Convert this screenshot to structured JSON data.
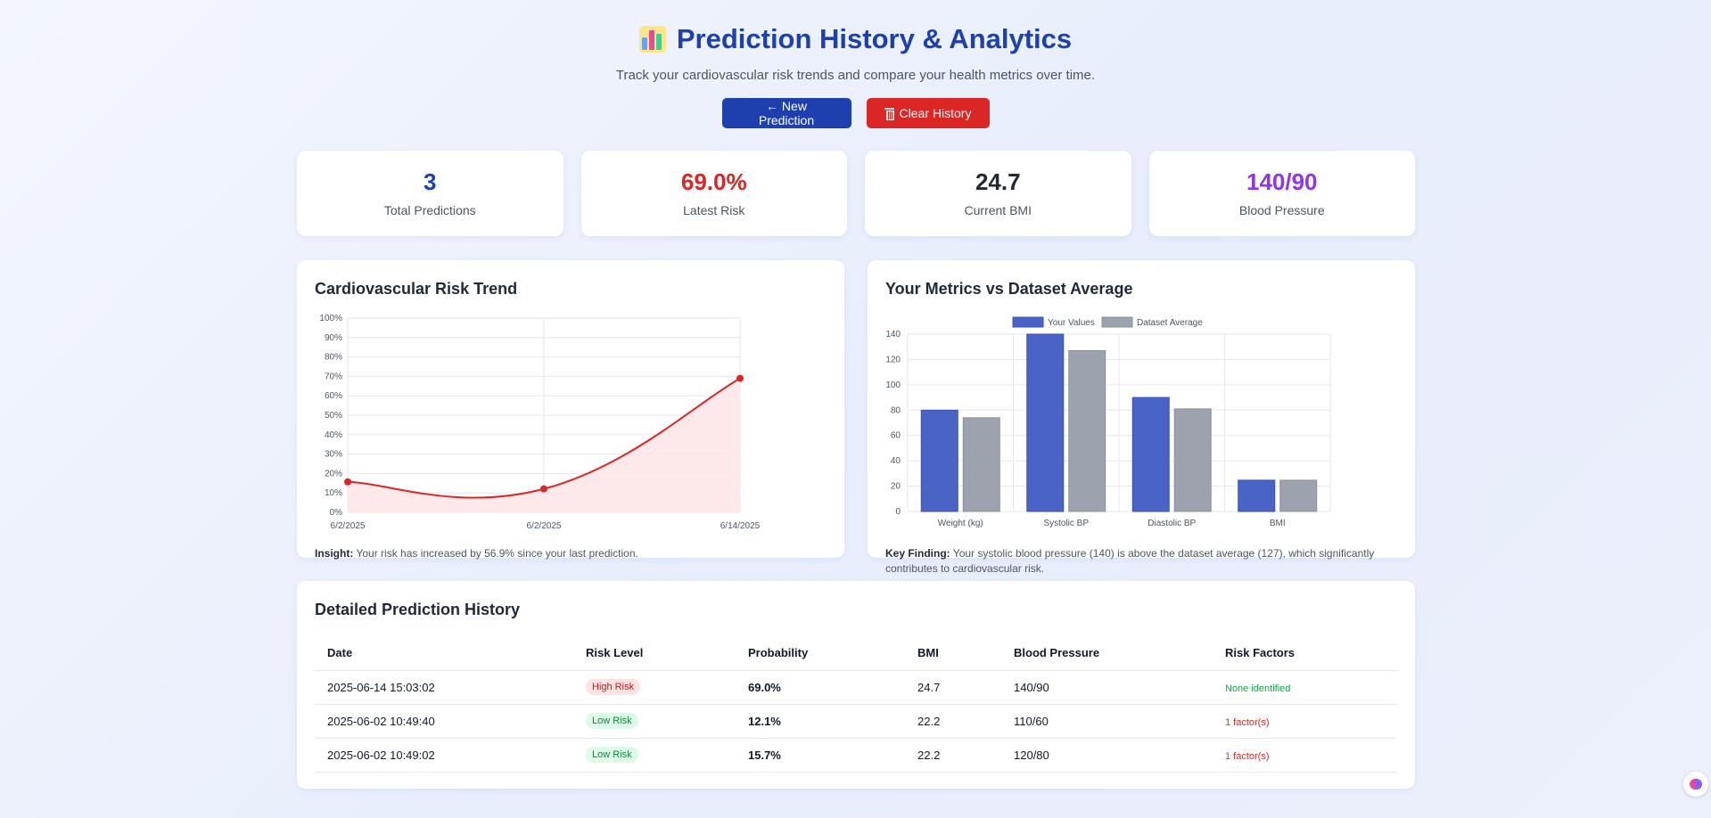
{
  "header": {
    "title": "Prediction History & Analytics",
    "subtitle": "Track your cardiovascular risk trends and compare your health metrics over time.",
    "new_prediction_label": "← New Prediction",
    "clear_history_label": "Clear History"
  },
  "stats": [
    {
      "value": "3",
      "label": "Total Predictions",
      "color": "#1e40af"
    },
    {
      "value": "69.0%",
      "label": "Latest Risk",
      "color": "#dc2626"
    },
    {
      "value": "24.7",
      "label": "Current BMI",
      "color": "#1f2937"
    },
    {
      "value": "140/90",
      "label": "Blood Pressure",
      "color": "#9333ea"
    }
  ],
  "risk_chart": {
    "title": "Cardiovascular Risk Trend",
    "insight_label": "Insight:",
    "insight_text": " Your risk has increased by 56.9% since your last prediction."
  },
  "metrics_chart": {
    "title": "Your Metrics vs Dataset Average",
    "finding_label": "Key Finding:",
    "finding_text": " Your systolic blood pressure (140) is above the dataset average (127), which significantly contributes to cardiovascular risk."
  },
  "chart_data": [
    {
      "type": "line",
      "title": "Cardiovascular Risk Trend",
      "x": [
        "6/2/2025",
        "6/2/2025",
        "6/14/2025"
      ],
      "series": [
        {
          "name": "Risk",
          "values": [
            15.7,
            12.1,
            69.0
          ]
        }
      ],
      "ylim": [
        0,
        100
      ],
      "yticks": [
        "0%",
        "10%",
        "20%",
        "30%",
        "40%",
        "50%",
        "60%",
        "70%",
        "80%",
        "90%",
        "100%"
      ],
      "line_color": "#dc2626",
      "fill_color": "#fde5e5"
    },
    {
      "type": "bar",
      "title": "Your Metrics vs Dataset Average",
      "categories": [
        "Weight (kg)",
        "Systolic BP",
        "Diastolic BP",
        "BMI"
      ],
      "series": [
        {
          "name": "Your Values",
          "values": [
            80,
            140,
            90,
            24.7
          ],
          "color": "#4a63c6"
        },
        {
          "name": "Dataset Average",
          "values": [
            74,
            127,
            81,
            24.7
          ],
          "color": "#9ca3af"
        }
      ],
      "ylim": [
        0,
        140
      ],
      "yticks": [
        "0",
        "20",
        "40",
        "60",
        "80",
        "100",
        "120",
        "140"
      ],
      "legend": "top"
    }
  ],
  "history": {
    "title": "Detailed Prediction History",
    "columns": [
      "Date",
      "Risk Level",
      "Probability",
      "BMI",
      "Blood Pressure",
      "Risk Factors"
    ],
    "rows": [
      {
        "date": "2025-06-14 15:03:02",
        "risk": "High Risk",
        "level": "high",
        "prob": "69.0%",
        "bmi": "24.7",
        "bp": "140/90",
        "factors": "None identified",
        "fl": "none"
      },
      {
        "date": "2025-06-02 10:49:40",
        "risk": "Low Risk",
        "level": "low",
        "prob": "12.1%",
        "bmi": "22.2",
        "bp": "110/60",
        "factors": "1 factor(s)",
        "fl": "some"
      },
      {
        "date": "2025-06-02 10:49:02",
        "risk": "Low Risk",
        "level": "low",
        "prob": "15.7%",
        "bmi": "22.2",
        "bp": "120/80",
        "factors": "1 factor(s)",
        "fl": "some"
      }
    ]
  }
}
